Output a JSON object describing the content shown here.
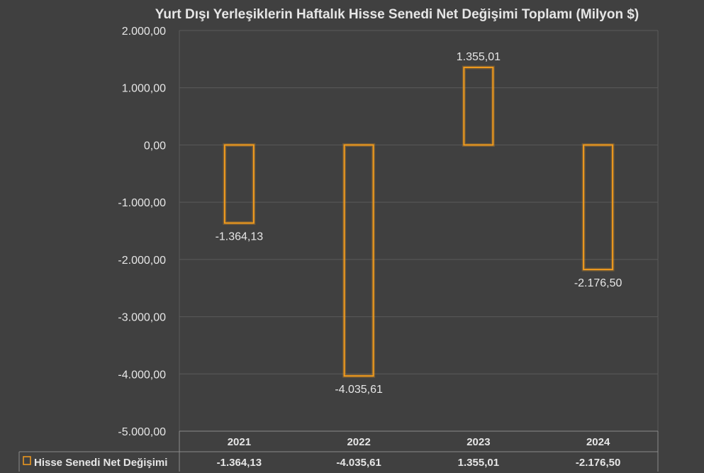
{
  "chart_data": {
    "type": "bar",
    "title": "Yurt Dışı Yerleşiklerin Haftalık Hisse Senedi Net Değişimi Toplamı (Milyon $)",
    "categories": [
      "2021",
      "2022",
      "2023",
      "2024"
    ],
    "series": [
      {
        "name": "Hisse Senedi Net Değişimi",
        "values": [
          -1364.13,
          -4035.61,
          1355.01,
          -2176.5
        ],
        "labels": [
          "-1.364,13",
          "-4.035,61",
          "1.355,01",
          "-2.176,50"
        ]
      }
    ],
    "yticks": [
      "2.000,00",
      "1.000,00",
      "0,00",
      "-1.000,00",
      "-2.000,00",
      "-3.000,00",
      "-4.000,00",
      "-5.000,00"
    ],
    "ytick_values": [
      2000,
      1000,
      0,
      -1000,
      -2000,
      -3000,
      -4000,
      -5000
    ],
    "ylim": [
      -5000,
      2000
    ],
    "grid": true,
    "legend": "data-table",
    "bar_color": "#f29b1d",
    "background": "#404040"
  }
}
